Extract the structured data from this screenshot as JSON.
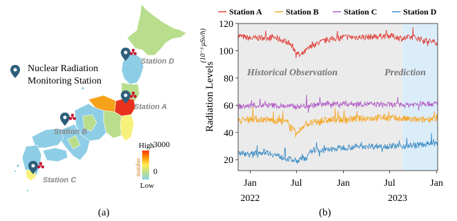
{
  "panel_a": {
    "label": "(a)",
    "legend_label_line1": "Nuclear Radiation",
    "legend_label_line2": "Monitoring Station",
    "legend_icon": "radiation-marker-icon",
    "stations": [
      {
        "name": "Station D",
        "icon": "radiation-marker-icon"
      },
      {
        "name": "Station A",
        "icon": "radiation-marker-icon"
      },
      {
        "name": "Station B",
        "icon": "radiation-marker-icon"
      },
      {
        "name": "Station C",
        "icon": "radiation-marker-icon"
      }
    ],
    "colorbar": {
      "high_label": "High",
      "low_label": "Low",
      "title": "number",
      "ticks": [
        "3000",
        "0"
      ],
      "colors": [
        "#ff3300",
        "#ff9900",
        "#ffee55",
        "#b9e08a",
        "#8fd3e8"
      ]
    },
    "map_colors": {
      "blue": "#8ecde6",
      "green": "#b8dd8d",
      "yellow": "#f5f17a",
      "orange": "#f7a21b",
      "red": "#e8321e"
    }
  },
  "panel_b": {
    "label": "(b)",
    "annotations": {
      "historical": "Historical Observation",
      "prediction": "Prediction"
    },
    "ylabel": "Radiation Levels",
    "yunit": "(10⁻³ μSv/h)",
    "colors": {
      "historical_bg": "#ebebeb",
      "prediction_bg": "#dcedfa"
    }
  },
  "chart_data": {
    "type": "line",
    "x_start": "2021-11-15",
    "x_end": "2024-01-05",
    "prediction_start": "2023-08-20",
    "xticks": [
      {
        "date": "2022-01-01",
        "label": "Jan",
        "year": "2022"
      },
      {
        "date": "2022-07-01",
        "label": "Jul"
      },
      {
        "date": "2023-01-01",
        "label": "Jan",
        "year": "2023"
      },
      {
        "date": "2023-07-01",
        "label": "Jul"
      },
      {
        "date": "2024-01-01",
        "label": "Jan"
      }
    ],
    "x_year_labels": [
      {
        "date": "2022-01-01",
        "label": "2022"
      },
      {
        "date": "2023-08-01",
        "label": "2023"
      }
    ],
    "ylim": [
      12,
      120
    ],
    "yticks": [
      20,
      40,
      60,
      80,
      100,
      120
    ],
    "grid": false,
    "legend_position": "top",
    "series": [
      {
        "name": "Station A",
        "color": "#e0403a",
        "anchors": [
          [
            "2021-11-15",
            111
          ],
          [
            "2022-01-01",
            109
          ],
          [
            "2022-04-01",
            110
          ],
          [
            "2022-06-01",
            106
          ],
          [
            "2022-07-15",
            96
          ],
          [
            "2022-09-01",
            104
          ],
          [
            "2022-11-01",
            108
          ],
          [
            "2023-01-01",
            110
          ],
          [
            "2023-04-01",
            110
          ],
          [
            "2023-07-01",
            111
          ],
          [
            "2023-08-20",
            109
          ],
          [
            "2023-10-01",
            110
          ],
          [
            "2023-12-01",
            107
          ],
          [
            "2024-01-05",
            106
          ]
        ]
      },
      {
        "name": "Station B",
        "color": "#f5a623",
        "anchors": [
          [
            "2021-11-15",
            48
          ],
          [
            "2022-01-01",
            50
          ],
          [
            "2022-04-01",
            49
          ],
          [
            "2022-06-01",
            47
          ],
          [
            "2022-07-01",
            38
          ],
          [
            "2022-08-01",
            46
          ],
          [
            "2022-11-01",
            49
          ],
          [
            "2023-03-01",
            50
          ],
          [
            "2023-06-01",
            51
          ],
          [
            "2023-08-20",
            50
          ],
          [
            "2023-11-01",
            49
          ],
          [
            "2024-01-05",
            51
          ]
        ]
      },
      {
        "name": "Station C",
        "color": "#b05cc4",
        "anchors": [
          [
            "2021-11-15",
            59
          ],
          [
            "2022-03-01",
            60
          ],
          [
            "2022-07-01",
            59
          ],
          [
            "2022-11-01",
            61
          ],
          [
            "2023-03-01",
            61
          ],
          [
            "2023-08-20",
            60
          ],
          [
            "2023-11-01",
            61
          ],
          [
            "2024-01-05",
            61
          ]
        ]
      },
      {
        "name": "Station D",
        "color": "#3b8bc4",
        "anchors": [
          [
            "2021-11-15",
            25
          ],
          [
            "2022-01-01",
            24
          ],
          [
            "2022-03-01",
            26
          ],
          [
            "2022-05-01",
            22
          ],
          [
            "2022-07-01",
            19
          ],
          [
            "2022-08-15",
            22
          ],
          [
            "2022-09-01",
            27
          ],
          [
            "2022-11-01",
            27
          ],
          [
            "2023-01-01",
            29
          ],
          [
            "2023-04-01",
            30
          ],
          [
            "2023-08-20",
            30
          ],
          [
            "2023-11-01",
            31
          ],
          [
            "2024-01-05",
            32
          ]
        ]
      }
    ]
  }
}
